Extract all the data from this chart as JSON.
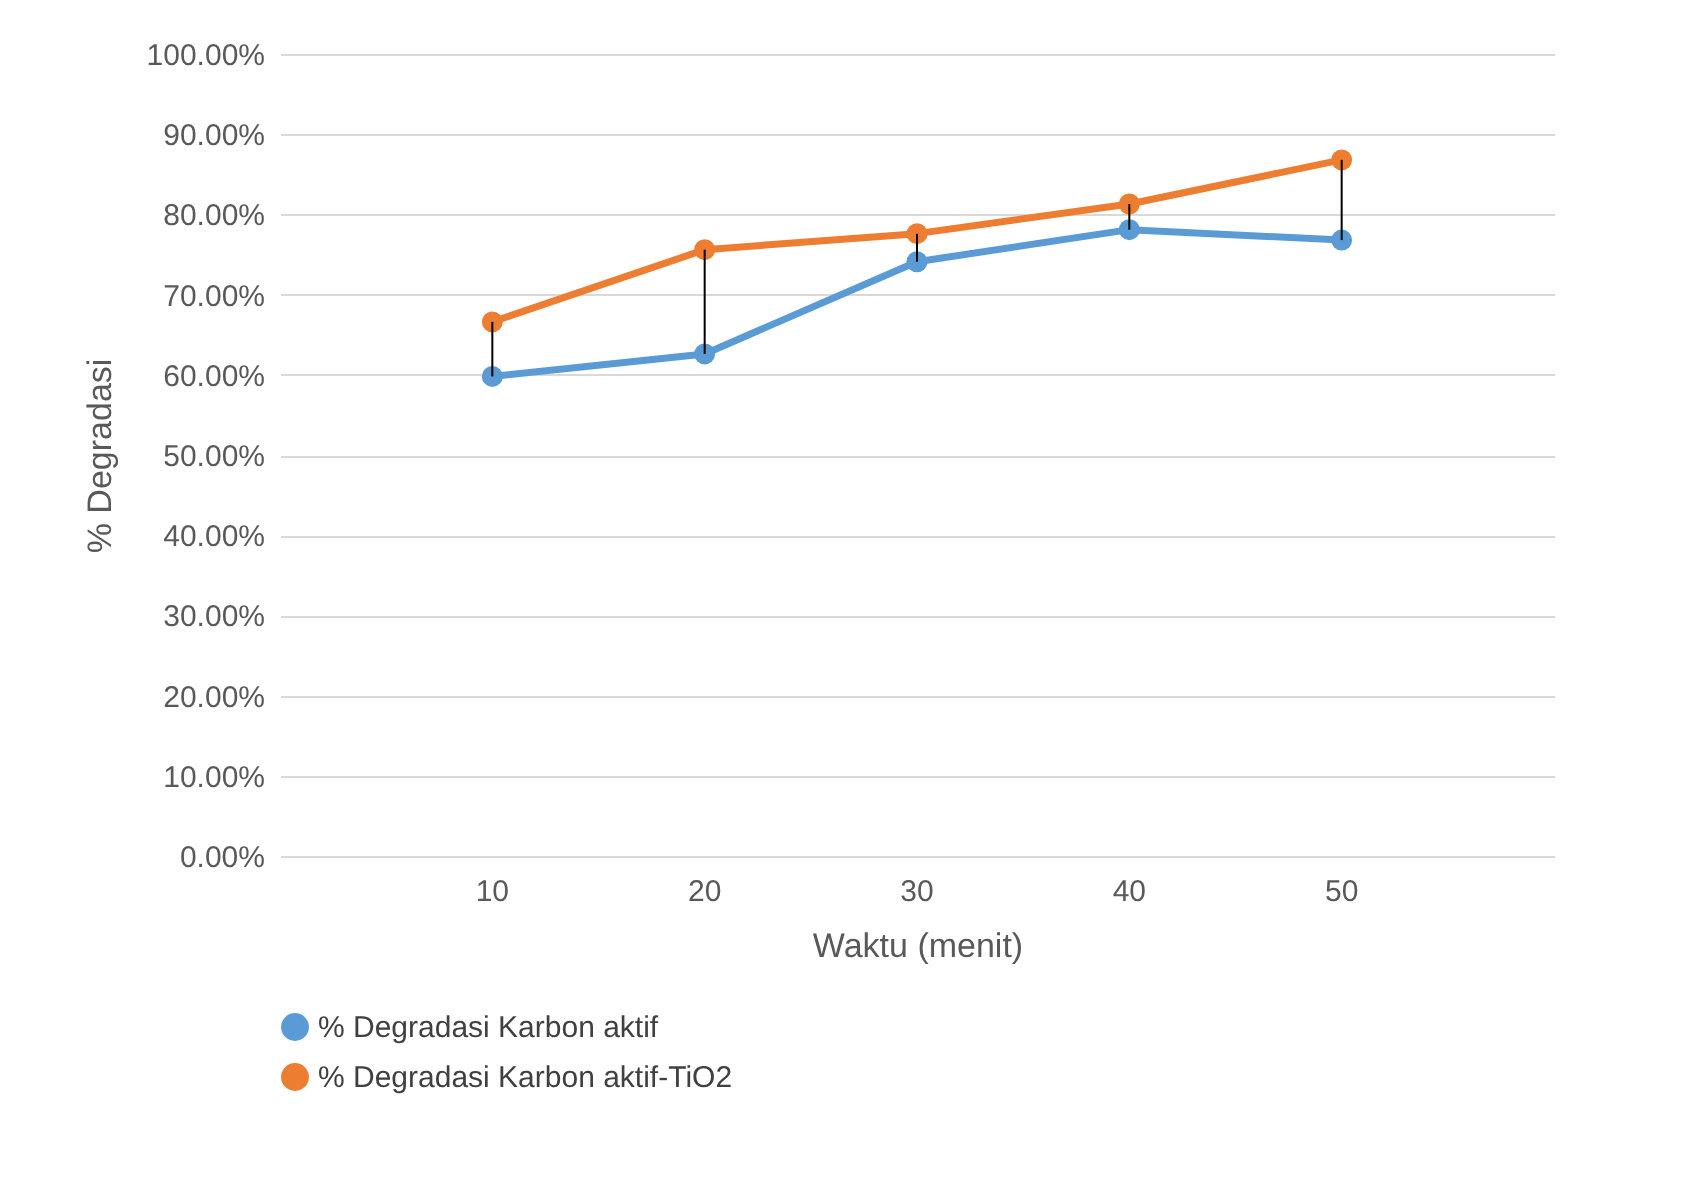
{
  "chart_data": {
    "type": "line",
    "xlabel": "Waktu (menit)",
    "ylabel": "% Degradasi",
    "categories": [
      "10",
      "20",
      "30",
      "40",
      "50"
    ],
    "series": [
      {
        "name": "% Degradasi Karbon aktif",
        "color": "#5b9bd5",
        "values": [
          59.8,
          62.6,
          74.1,
          78.1,
          76.8
        ],
        "errors": [
          [
            59.8,
            66.6
          ],
          [
            62.6,
            75.6
          ],
          [
            74.1,
            77.6
          ],
          [
            78.1,
            81.3
          ],
          [
            76.8,
            86.8
          ]
        ]
      },
      {
        "name": "% Degradasi Karbon aktif-TiO2",
        "color": "#ed7d31",
        "values": [
          66.6,
          75.6,
          77.6,
          81.3,
          86.8
        ]
      }
    ],
    "ylim": [
      0,
      100
    ],
    "yticks": [
      {
        "value": 0,
        "label": "0.00%"
      },
      {
        "value": 10,
        "label": "10.00%"
      },
      {
        "value": 20,
        "label": "20.00%"
      },
      {
        "value": 30,
        "label": "30.00%"
      },
      {
        "value": 40,
        "label": "40.00%"
      },
      {
        "value": 50,
        "label": "50.00%"
      },
      {
        "value": 60,
        "label": "60.00%"
      },
      {
        "value": 70,
        "label": "70.00%"
      },
      {
        "value": 80,
        "label": "80.00%"
      },
      {
        "value": 90,
        "label": "90.00%"
      },
      {
        "value": 100,
        "label": "100.00%"
      }
    ],
    "grid": "y",
    "legend": "bottom",
    "marker": "circle",
    "line_style": "solid"
  }
}
